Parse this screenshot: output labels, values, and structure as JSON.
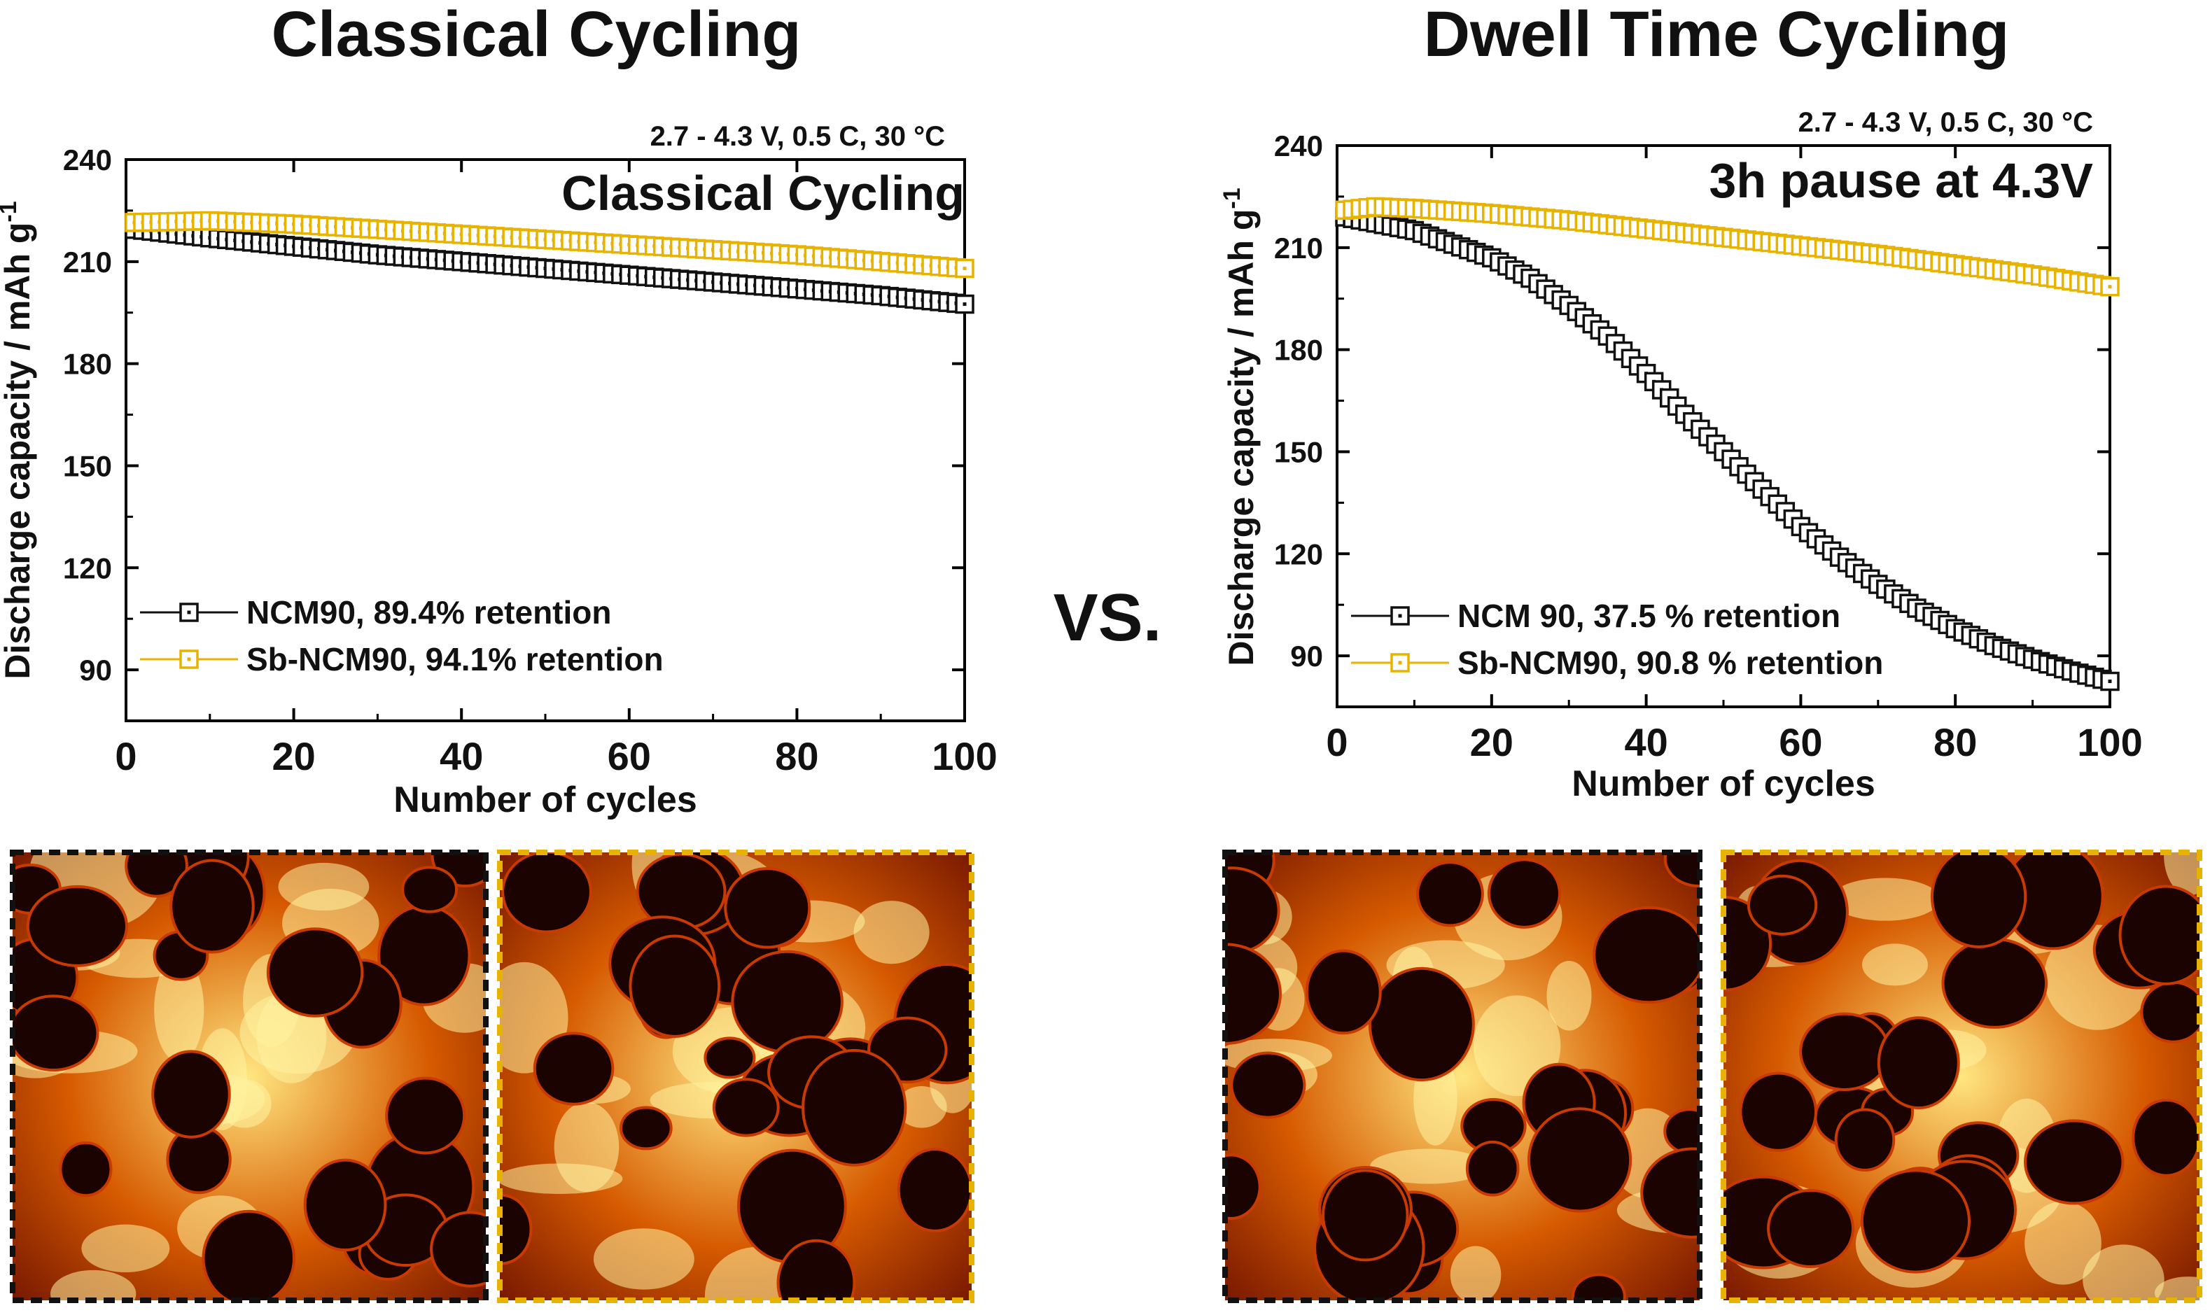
{
  "headings": {
    "left": "Classical Cycling",
    "right": "Dwell Time Cycling",
    "vs": "VS."
  },
  "colors": {
    "ncm90": "#111111",
    "sb_ncm90": "#e8b300",
    "sem_dark": "#1a0300",
    "sem_mid": "#c83a00",
    "sem_bright": "#fff2a0"
  },
  "chart_data": [
    {
      "type": "scatter",
      "title": "Classical Cycling",
      "conditions": "2.7 - 4.3 V,  0.5 C, 30 °C",
      "xlabel": "Number of cycles",
      "ylabel": "Discharge capacity / mAh g",
      "ylabel_sup": "-1",
      "xlim": [
        0,
        100
      ],
      "ylim": [
        75,
        240
      ],
      "xticks": [
        0,
        20,
        40,
        60,
        80,
        100
      ],
      "yticks": [
        90,
        120,
        150,
        180,
        210,
        240
      ],
      "series": [
        {
          "name": "NCM90, 89.4% retention",
          "marker": "hollow-square",
          "x": [
            1,
            10,
            20,
            30,
            40,
            50,
            60,
            70,
            80,
            90,
            100
          ],
          "y": [
            219.5,
            217,
            214.5,
            212,
            210,
            208,
            206,
            204,
            202,
            200,
            197.5
          ]
        },
        {
          "name": "Sb-NCM90, 94.1% retention",
          "marker": "hollow-square",
          "x": [
            1,
            10,
            20,
            30,
            40,
            50,
            60,
            70,
            80,
            90,
            100
          ],
          "y": [
            221.5,
            222,
            221,
            219.5,
            218,
            216.5,
            215,
            213.5,
            212,
            210,
            208
          ]
        }
      ]
    },
    {
      "type": "scatter",
      "title": "3h pause at 4.3V",
      "conditions": "2.7 - 4.3 V,  0.5 C, 30 °C",
      "xlabel": "Number of cycles",
      "ylabel": "Discharge capacity / mAh g",
      "ylabel_sup": "-1",
      "xlim": [
        0,
        100
      ],
      "ylim": [
        75,
        240
      ],
      "xticks": [
        0,
        20,
        40,
        60,
        80,
        100
      ],
      "yticks": [
        90,
        120,
        150,
        180,
        210,
        240
      ],
      "series": [
        {
          "name": "NCM 90, 37.5 % retention",
          "marker": "hollow-square",
          "x": [
            1,
            10,
            20,
            25,
            30,
            35,
            40,
            45,
            50,
            55,
            60,
            65,
            70,
            75,
            80,
            85,
            90,
            95,
            100
          ],
          "y": [
            219,
            215,
            207,
            201,
            193,
            184,
            173,
            161,
            150,
            139,
            128,
            119,
            111,
            104,
            98,
            93,
            89,
            85.5,
            82.5
          ]
        },
        {
          "name": "Sb-NCM90, 90.8 % retention",
          "marker": "hollow-square",
          "x": [
            1,
            5,
            10,
            20,
            30,
            40,
            50,
            60,
            70,
            80,
            90,
            100
          ],
          "y": [
            221,
            222,
            221.5,
            220,
            218,
            215.5,
            213,
            210.5,
            208,
            205,
            202,
            198.5
          ]
        }
      ]
    }
  ],
  "sem_images": [
    {
      "name": "sem-classical-ncm90",
      "frame": "ncm90"
    },
    {
      "name": "sem-classical-sb-ncm90",
      "frame": "sb_ncm90"
    },
    {
      "name": "sem-dwell-ncm90",
      "frame": "ncm90"
    },
    {
      "name": "sem-dwell-sb-ncm90",
      "frame": "sb_ncm90"
    }
  ]
}
